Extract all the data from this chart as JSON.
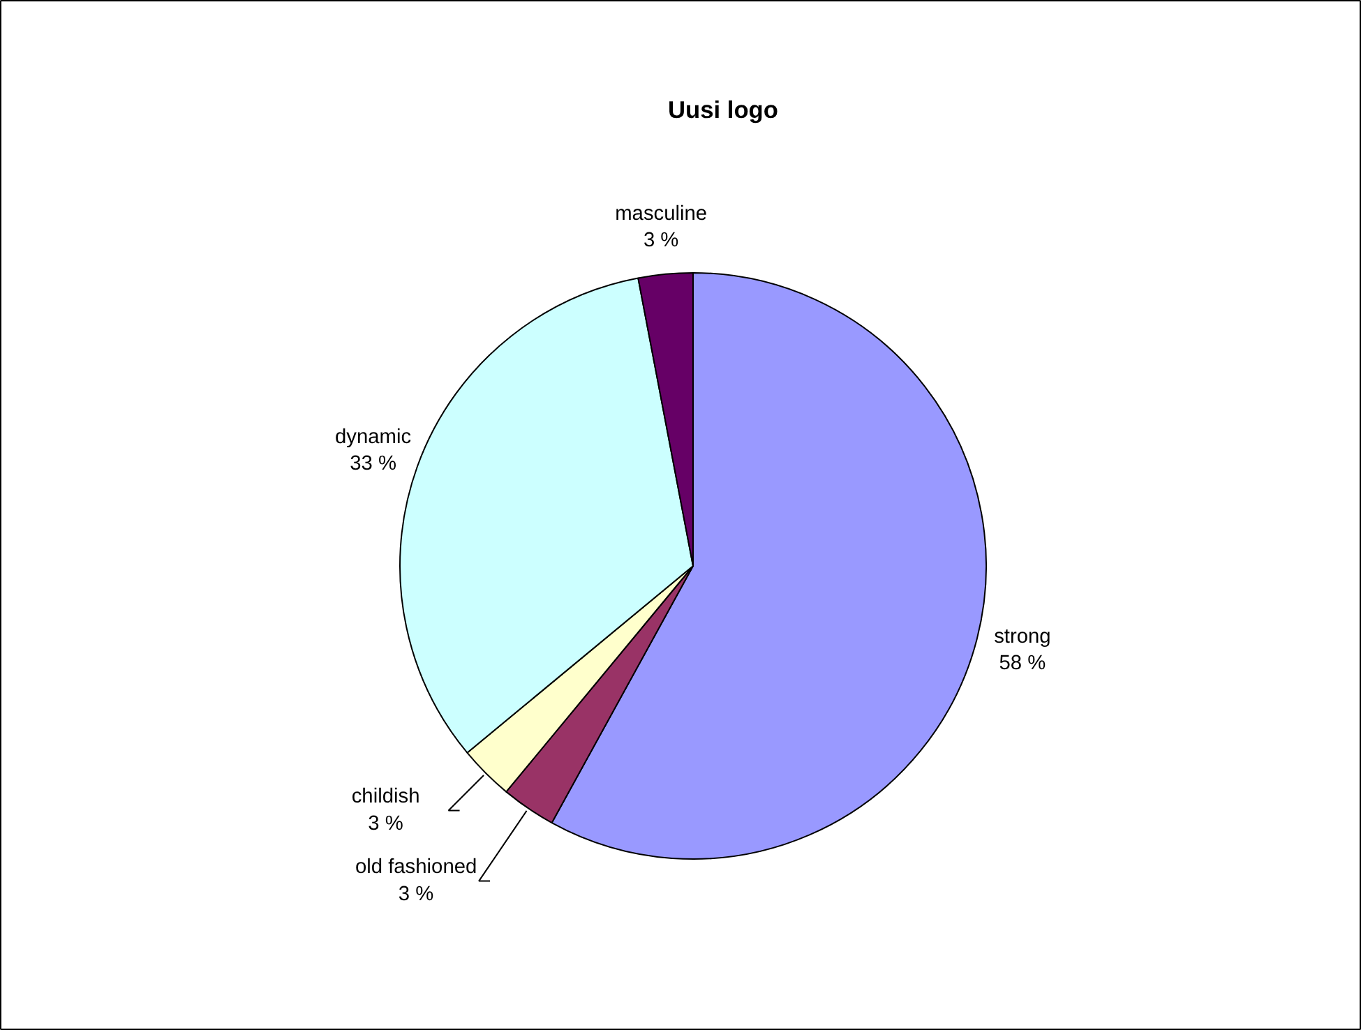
{
  "chart_data": {
    "type": "pie",
    "title": "Uusi logo",
    "categories": [
      "strong",
      "old fashioned",
      "childish",
      "dynamic",
      "masculine"
    ],
    "values": [
      58,
      3,
      3,
      33,
      3
    ],
    "value_labels": [
      "58 %",
      "3 %",
      "3 %",
      "33 %",
      "3 %"
    ],
    "colors": [
      "#9999ff",
      "#993366",
      "#ffffcc",
      "#ccffff",
      "#660066"
    ]
  }
}
